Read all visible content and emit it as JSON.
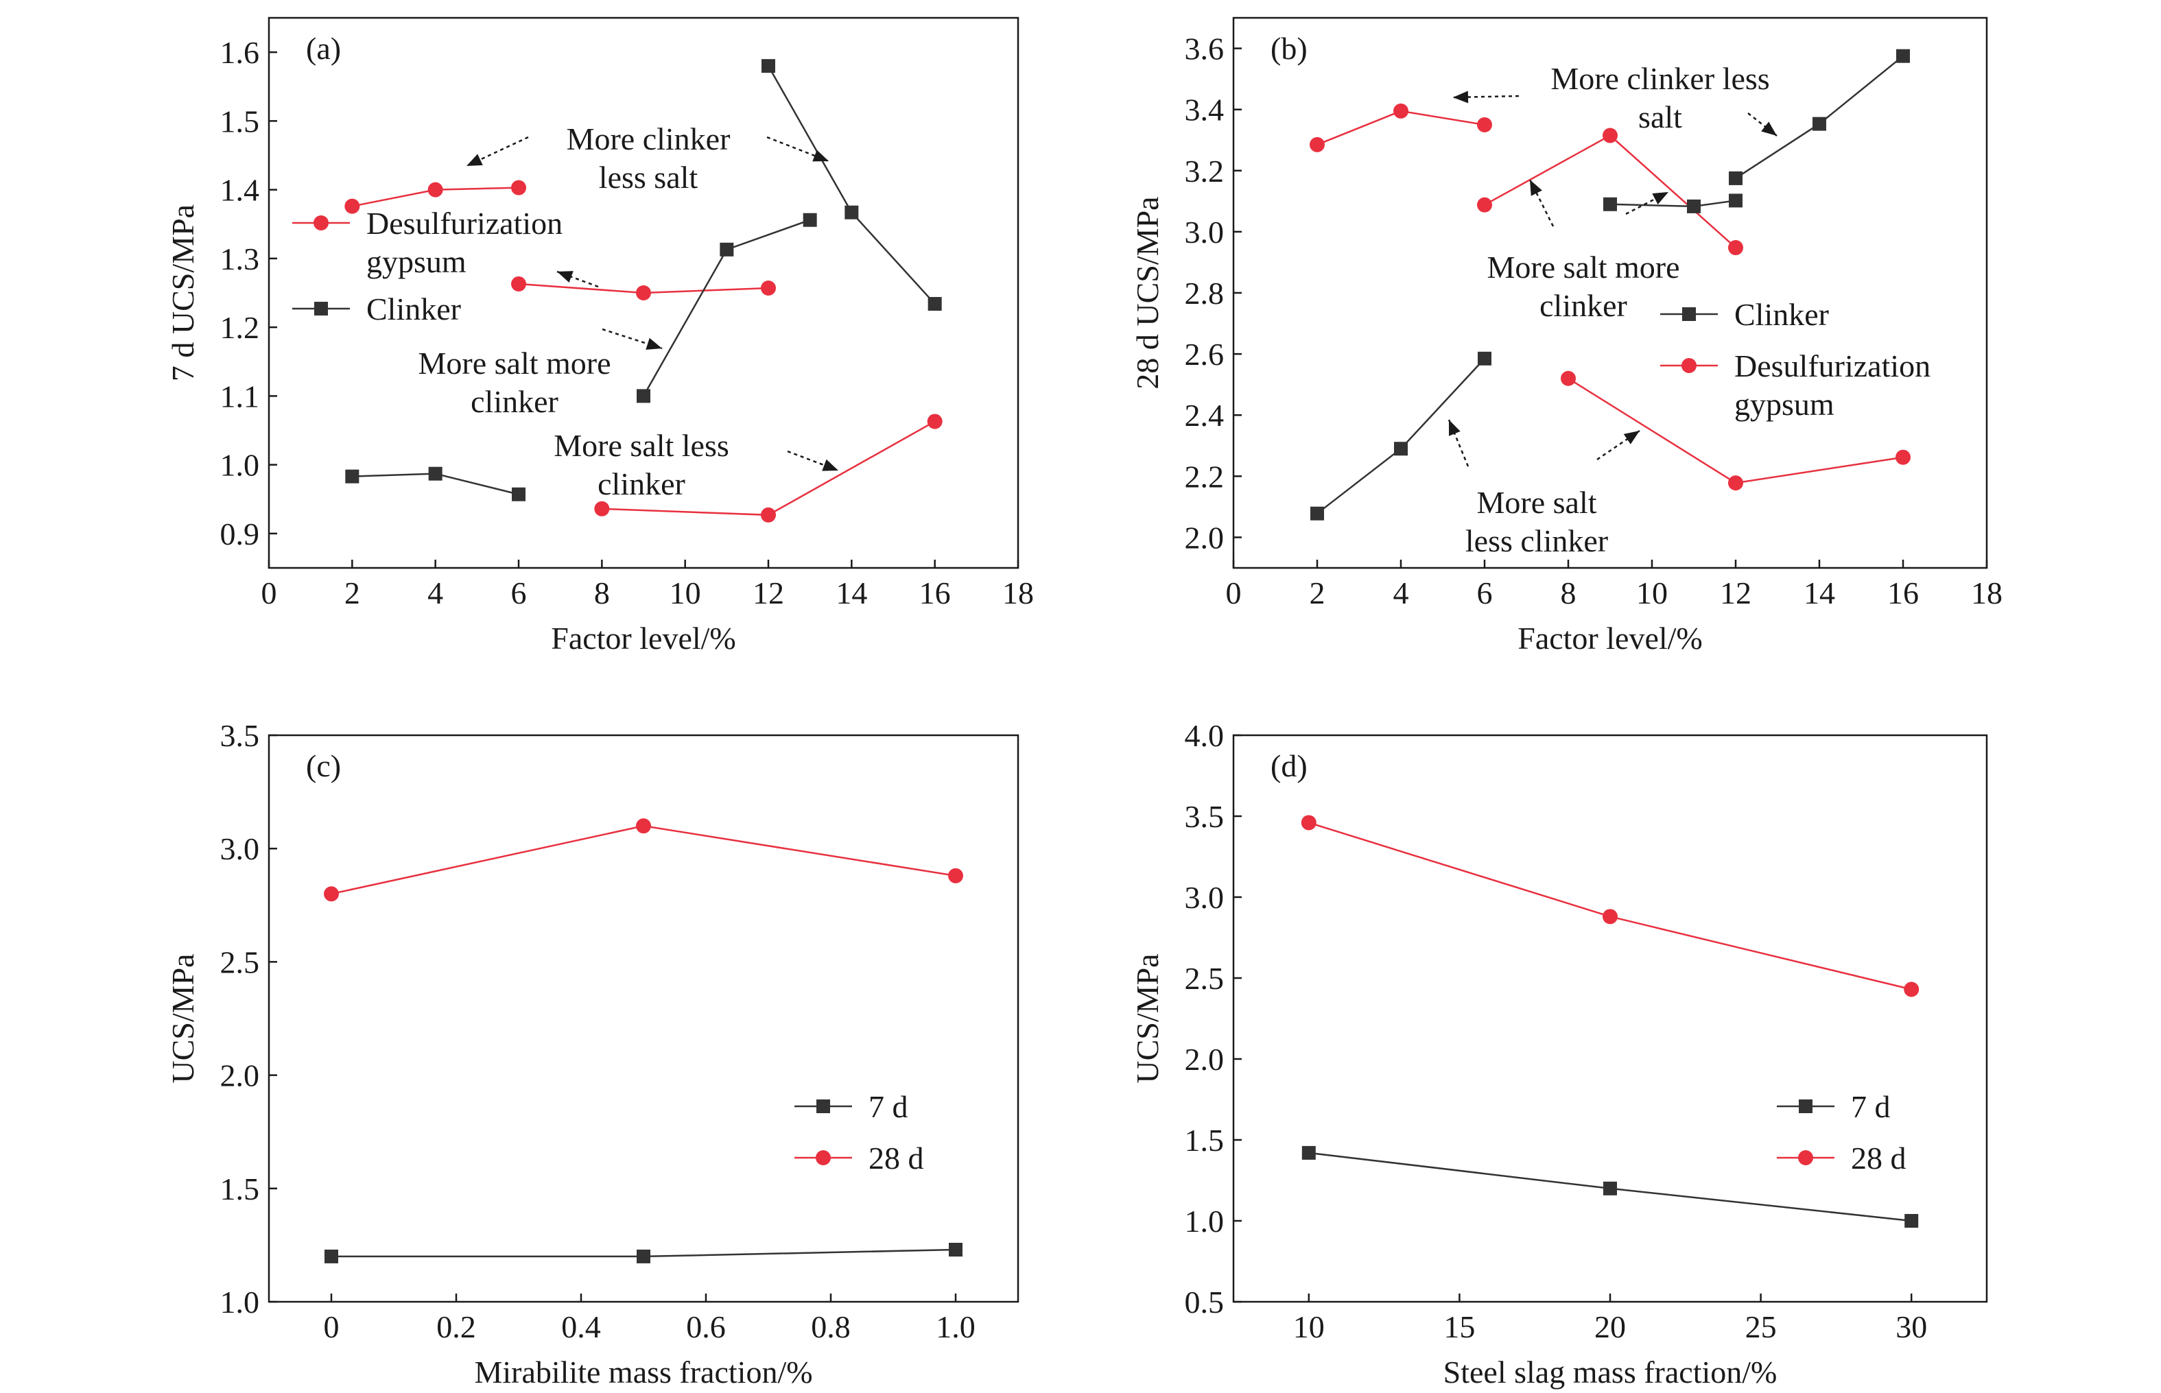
{
  "colors": {
    "black": "#333333",
    "red": "#e8303f",
    "axis": "#1a1a1a"
  },
  "chart_data": [
    {
      "id": "a",
      "panel_label": "(a)",
      "type": "line",
      "xlabel": "Factor level/%",
      "ylabel": "7 d UCS/MPa",
      "xlim": [
        0,
        18
      ],
      "ylim": [
        0.85,
        1.65
      ],
      "xticks": [
        0,
        2,
        4,
        6,
        8,
        10,
        12,
        14,
        16,
        18
      ],
      "xtick_labels": [
        "0",
        "2",
        "4",
        "6",
        "8",
        "10",
        "12",
        "14",
        "16",
        "18"
      ],
      "yticks": [
        0.9,
        1.0,
        1.1,
        1.2,
        1.3,
        1.4,
        1.5,
        1.6
      ],
      "ytick_labels": [
        "0.9",
        "1.0",
        "1.1",
        "1.2",
        "1.3",
        "1.4",
        "1.5",
        "1.6"
      ],
      "legend": [
        {
          "name": "Desulfurization gypsum",
          "lines": [
            "Desulfurization",
            "gypsum"
          ],
          "color": "#e8303f",
          "marker": "circle"
        },
        {
          "name": "Clinker",
          "lines": [
            "Clinker"
          ],
          "color": "#333333",
          "marker": "square"
        }
      ],
      "series": [
        {
          "name": "Desulfurization gypsum",
          "group": "More clinker less salt",
          "color": "#e8303f",
          "marker": "circle",
          "x": [
            2,
            4,
            6
          ],
          "y": [
            1.376,
            1.4,
            1.403
          ]
        },
        {
          "name": "Desulfurization gypsum",
          "group": "More salt more clinker",
          "color": "#e8303f",
          "marker": "circle",
          "x": [
            6,
            9,
            12
          ],
          "y": [
            1.263,
            1.25,
            1.257
          ]
        },
        {
          "name": "Desulfurization gypsum",
          "group": "More salt less clinker",
          "color": "#e8303f",
          "marker": "circle",
          "x": [
            8,
            12,
            16
          ],
          "y": [
            0.936,
            0.927,
            1.063
          ]
        },
        {
          "name": "Clinker",
          "group": "More clinker less salt",
          "color": "#333333",
          "marker": "square",
          "x": [
            12,
            14,
            16
          ],
          "y": [
            1.58,
            1.367,
            1.234
          ]
        },
        {
          "name": "Clinker",
          "group": "More salt more clinker",
          "color": "#333333",
          "marker": "square",
          "x": [
            9,
            11,
            13
          ],
          "y": [
            1.1,
            1.313,
            1.356
          ]
        },
        {
          "name": "Clinker",
          "group": "More salt less clinker",
          "color": "#333333",
          "marker": "square",
          "x": [
            2,
            4,
            6
          ],
          "y": [
            0.983,
            0.987,
            0.957
          ]
        }
      ],
      "annotations": [
        {
          "lines": [
            "More clinker",
            "less salt"
          ]
        },
        {
          "lines": [
            "More salt more",
            "clinker"
          ]
        },
        {
          "lines": [
            "More salt less",
            "clinker"
          ]
        }
      ]
    },
    {
      "id": "b",
      "panel_label": "(b)",
      "type": "line",
      "xlabel": "Factor level/%",
      "ylabel": "28 d UCS/MPa",
      "xlim": [
        0,
        18
      ],
      "ylim": [
        1.9,
        3.7
      ],
      "xticks": [
        0,
        2,
        4,
        6,
        8,
        10,
        12,
        14,
        16,
        18
      ],
      "xtick_labels": [
        "0",
        "2",
        "4",
        "6",
        "8",
        "10",
        "12",
        "14",
        "16",
        "18"
      ],
      "yticks": [
        2.0,
        2.2,
        2.4,
        2.6,
        2.8,
        3.0,
        3.2,
        3.4,
        3.6
      ],
      "ytick_labels": [
        "2.0",
        "2.2",
        "2.4",
        "2.6",
        "2.8",
        "3.0",
        "3.2",
        "3.4",
        "3.6"
      ],
      "legend": [
        {
          "name": "Clinker",
          "lines": [
            "Clinker"
          ],
          "color": "#333333",
          "marker": "square"
        },
        {
          "name": "Desulfurization gypsum",
          "lines": [
            "Desulfurization",
            "gypsum"
          ],
          "color": "#e8303f",
          "marker": "circle"
        }
      ],
      "series": [
        {
          "name": "Desulfurization gypsum",
          "group": "More clinker less salt",
          "color": "#e8303f",
          "marker": "circle",
          "x": [
            2,
            4,
            6
          ],
          "y": [
            3.285,
            3.395,
            3.35
          ]
        },
        {
          "name": "Desulfurization gypsum",
          "group": "More salt more clinker",
          "color": "#e8303f",
          "marker": "circle",
          "x": [
            6,
            9,
            12
          ],
          "y": [
            3.088,
            3.315,
            2.948
          ]
        },
        {
          "name": "Desulfurization gypsum",
          "group": "More salt less clinker",
          "color": "#e8303f",
          "marker": "circle",
          "x": [
            8,
            12,
            16
          ],
          "y": [
            2.52,
            2.178,
            2.262
          ]
        },
        {
          "name": "Clinker",
          "group": "More clinker less salt",
          "color": "#333333",
          "marker": "square",
          "x": [
            12,
            14,
            16
          ],
          "y": [
            3.175,
            3.353,
            3.575
          ]
        },
        {
          "name": "Clinker",
          "group": "More salt more clinker",
          "color": "#333333",
          "marker": "square",
          "x": [
            9,
            11,
            12
          ],
          "y": [
            3.09,
            3.083,
            3.102
          ]
        },
        {
          "name": "Clinker",
          "group": "More salt less clinker",
          "color": "#333333",
          "marker": "square",
          "x": [
            2,
            4,
            6
          ],
          "y": [
            2.078,
            2.29,
            2.585
          ]
        }
      ],
      "annotations": [
        {
          "lines": [
            "More clinker less",
            "salt"
          ]
        },
        {
          "lines": [
            "More salt more",
            "clinker"
          ]
        },
        {
          "lines": [
            "More salt",
            "less clinker"
          ]
        }
      ]
    },
    {
      "id": "c",
      "panel_label": "(c)",
      "type": "line",
      "xlabel": "Mirabilite mass fraction/%",
      "ylabel": "UCS/MPa",
      "xlim": [
        -0.1,
        1.1
      ],
      "ylim": [
        1.0,
        3.5
      ],
      "xticks": [
        0,
        0.2,
        0.4,
        0.6,
        0.8,
        1.0
      ],
      "xtick_labels": [
        "0",
        "0.2",
        "0.4",
        "0.6",
        "0.8",
        "1.0"
      ],
      "yticks": [
        1.0,
        1.5,
        2.0,
        2.5,
        3.0,
        3.5
      ],
      "ytick_labels": [
        "1.0",
        "1.5",
        "2.0",
        "2.5",
        "3.0",
        "3.5"
      ],
      "legend": [
        {
          "name": "7 d",
          "lines": [
            "7 d"
          ],
          "color": "#333333",
          "marker": "square"
        },
        {
          "name": "28 d",
          "lines": [
            "28 d"
          ],
          "color": "#e8303f",
          "marker": "circle"
        }
      ],
      "series": [
        {
          "name": "7 d",
          "color": "#333333",
          "marker": "square",
          "x": [
            0,
            0.5,
            1.0
          ],
          "y": [
            1.2,
            1.2,
            1.23
          ]
        },
        {
          "name": "28 d",
          "color": "#e8303f",
          "marker": "circle",
          "x": [
            0,
            0.5,
            1.0
          ],
          "y": [
            2.8,
            3.1,
            2.88
          ]
        }
      ],
      "annotations": []
    },
    {
      "id": "d",
      "panel_label": "(d)",
      "type": "line",
      "xlabel": "Steel slag mass fraction/%",
      "ylabel": "UCS/MPa",
      "xlim": [
        7.5,
        32.5
      ],
      "ylim": [
        0.5,
        4.0
      ],
      "xticks": [
        10,
        15,
        20,
        25,
        30
      ],
      "xtick_labels": [
        "10",
        "15",
        "20",
        "25",
        "30"
      ],
      "yticks": [
        0.5,
        1.0,
        1.5,
        2.0,
        2.5,
        3.0,
        3.5,
        4.0
      ],
      "ytick_labels": [
        "0.5",
        "1.0",
        "1.5",
        "2.0",
        "2.5",
        "3.0",
        "3.5",
        "4.0"
      ],
      "legend": [
        {
          "name": "7 d",
          "lines": [
            "7 d"
          ],
          "color": "#333333",
          "marker": "square"
        },
        {
          "name": "28 d",
          "lines": [
            "28 d"
          ],
          "color": "#e8303f",
          "marker": "circle"
        }
      ],
      "series": [
        {
          "name": "7 d",
          "color": "#333333",
          "marker": "square",
          "x": [
            10,
            20,
            30
          ],
          "y": [
            1.42,
            1.2,
            1.0
          ]
        },
        {
          "name": "28 d",
          "color": "#e8303f",
          "marker": "circle",
          "x": [
            10,
            20,
            30
          ],
          "y": [
            3.46,
            2.88,
            2.43
          ]
        }
      ],
      "annotations": []
    }
  ]
}
